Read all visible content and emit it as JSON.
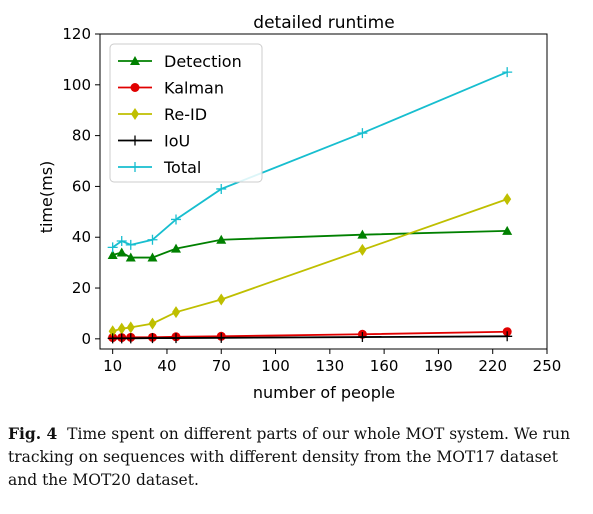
{
  "caption": {
    "label": "Fig. 4",
    "text": "Time spent on different parts of our whole MOT system. We run tracking on sequences with different density from the MOT17 dataset and the MOT20 dataset."
  },
  "chart_data": {
    "type": "line",
    "title": "detailed runtime",
    "xlabel": "number of people",
    "ylabel": "time(ms)",
    "xlim": [
      3,
      250
    ],
    "ylim": [
      -4,
      120
    ],
    "xticks": [
      10,
      40,
      70,
      100,
      130,
      160,
      190,
      220,
      250
    ],
    "yticks": [
      0,
      20,
      40,
      60,
      80,
      100,
      120
    ],
    "grid": false,
    "legend_position": "top-left",
    "x": [
      10,
      15,
      20,
      32,
      45,
      70,
      148,
      228
    ],
    "series": [
      {
        "name": "Detection",
        "color": "#008000",
        "marker": "triangle",
        "values": [
          33,
          34,
          32,
          32,
          35.5,
          39,
          41,
          42.5
        ]
      },
      {
        "name": "Kalman",
        "color": "#e00000",
        "marker": "circle",
        "values": [
          0.5,
          0.5,
          0.6,
          0.6,
          0.8,
          1.0,
          1.8,
          2.8
        ]
      },
      {
        "name": "Re-ID",
        "color": "#bfbf00",
        "marker": "diamond",
        "values": [
          3,
          4,
          4.5,
          6,
          10.5,
          15.5,
          35,
          55
        ]
      },
      {
        "name": "IoU",
        "color": "#000000",
        "marker": "plus",
        "values": [
          0.2,
          0.2,
          0.2,
          0.3,
          0.3,
          0.4,
          0.7,
          1.0
        ]
      },
      {
        "name": "Total",
        "color": "#17becf",
        "marker": "plus",
        "values": [
          36,
          38.5,
          37,
          39,
          47,
          59,
          81,
          105
        ]
      }
    ]
  }
}
